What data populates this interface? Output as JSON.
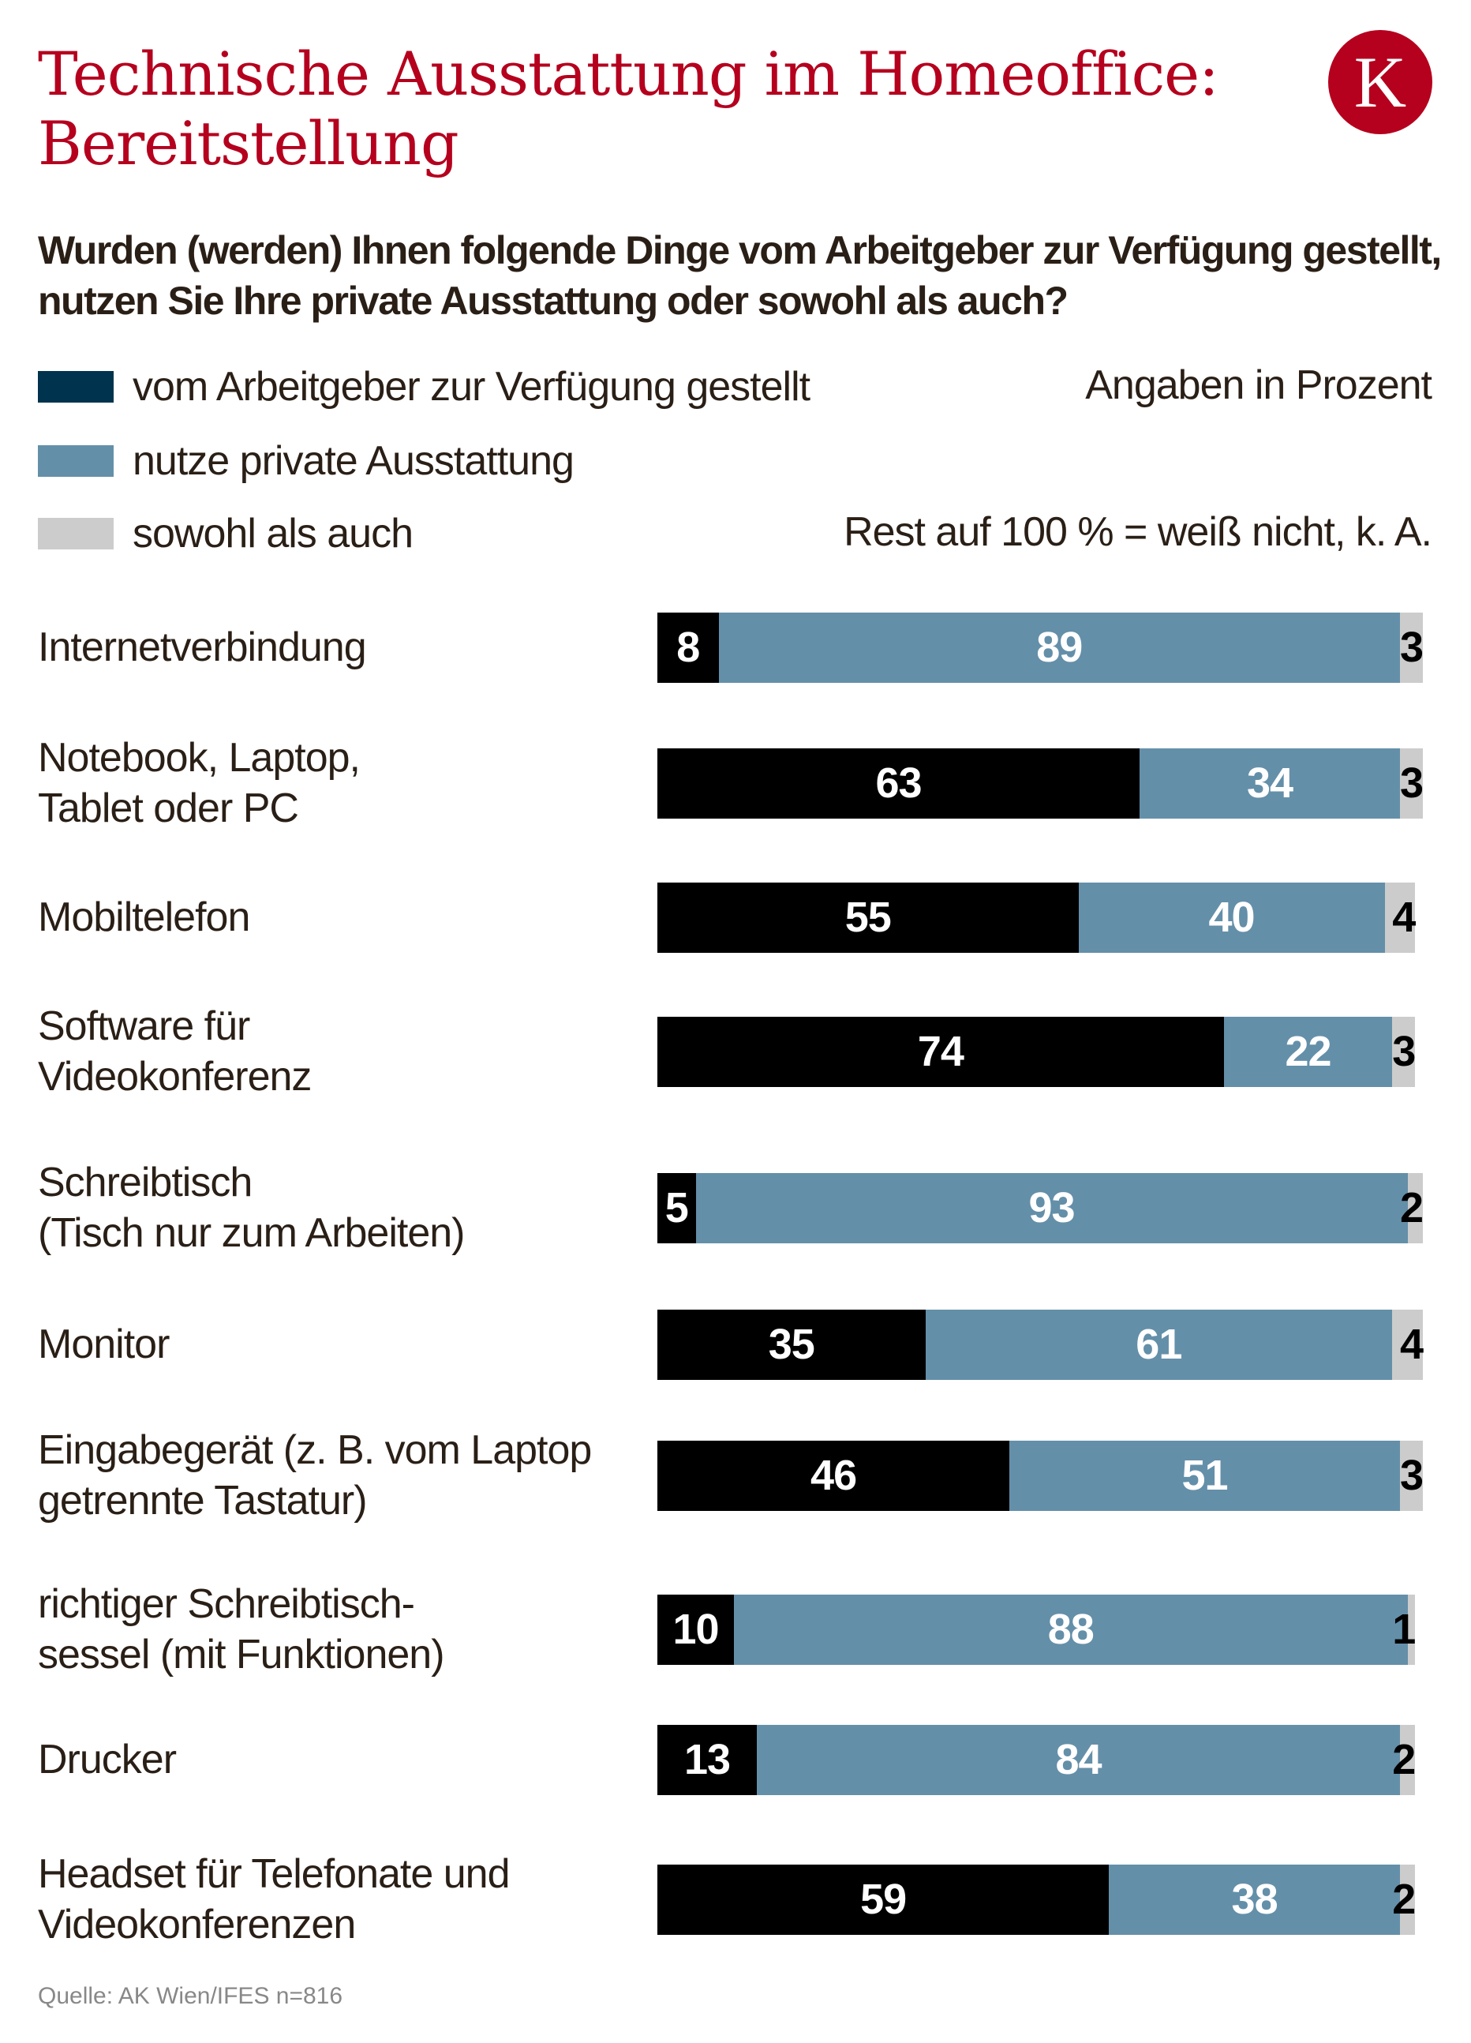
{
  "title": [
    "Technische Ausstattung im Homeoffice:",
    "Bereitstellung"
  ],
  "logo": "K",
  "subtitle": "Wurden (werden) Ihnen folgende Dinge vom Arbeitgeber zur Verfügung gestellt, nutzen Sie Ihre private Ausstattung oder sowohl als auch?",
  "units_note": "Angaben in Prozent",
  "rest_note": "Rest auf 100 % = weiß nicht, k. A.",
  "source": "Quelle: AK Wien/IFES n=816",
  "colors": {
    "title": "#b5001e",
    "employer": "#000000",
    "employer_legend": "#00334d",
    "private": "#648fa9",
    "both": "#cccccc"
  },
  "chart_data": {
    "type": "bar",
    "orientation": "horizontal",
    "stacked": true,
    "xlim": [
      0,
      100
    ],
    "categories": [
      "Internetverbindung",
      "Notebook, Laptop,\nTablet oder PC",
      "Mobiltelefon",
      "Software für\nVideokonferenz",
      "Schreibtisch\n(Tisch nur zum Arbeiten)",
      "Monitor",
      "Eingabegerät (z. B. vom Laptop\ngetrennte Tastatur)",
      "richtiger Schreibtisch-\nsessel (mit Funktionen)",
      "Drucker",
      "Headset für Telefonate und\nVideokonferenzen"
    ],
    "series": [
      {
        "name": "vom Arbeitgeber zur Verfügung gestellt",
        "values": [
          8,
          63,
          55,
          74,
          5,
          35,
          46,
          10,
          13,
          59
        ]
      },
      {
        "name": "nutze private Ausstattung",
        "values": [
          89,
          34,
          40,
          22,
          93,
          61,
          51,
          88,
          84,
          38
        ]
      },
      {
        "name": "sowohl als auch",
        "values": [
          3,
          3,
          4,
          3,
          2,
          4,
          3,
          1,
          2,
          2
        ]
      }
    ],
    "legend": "top-left"
  }
}
